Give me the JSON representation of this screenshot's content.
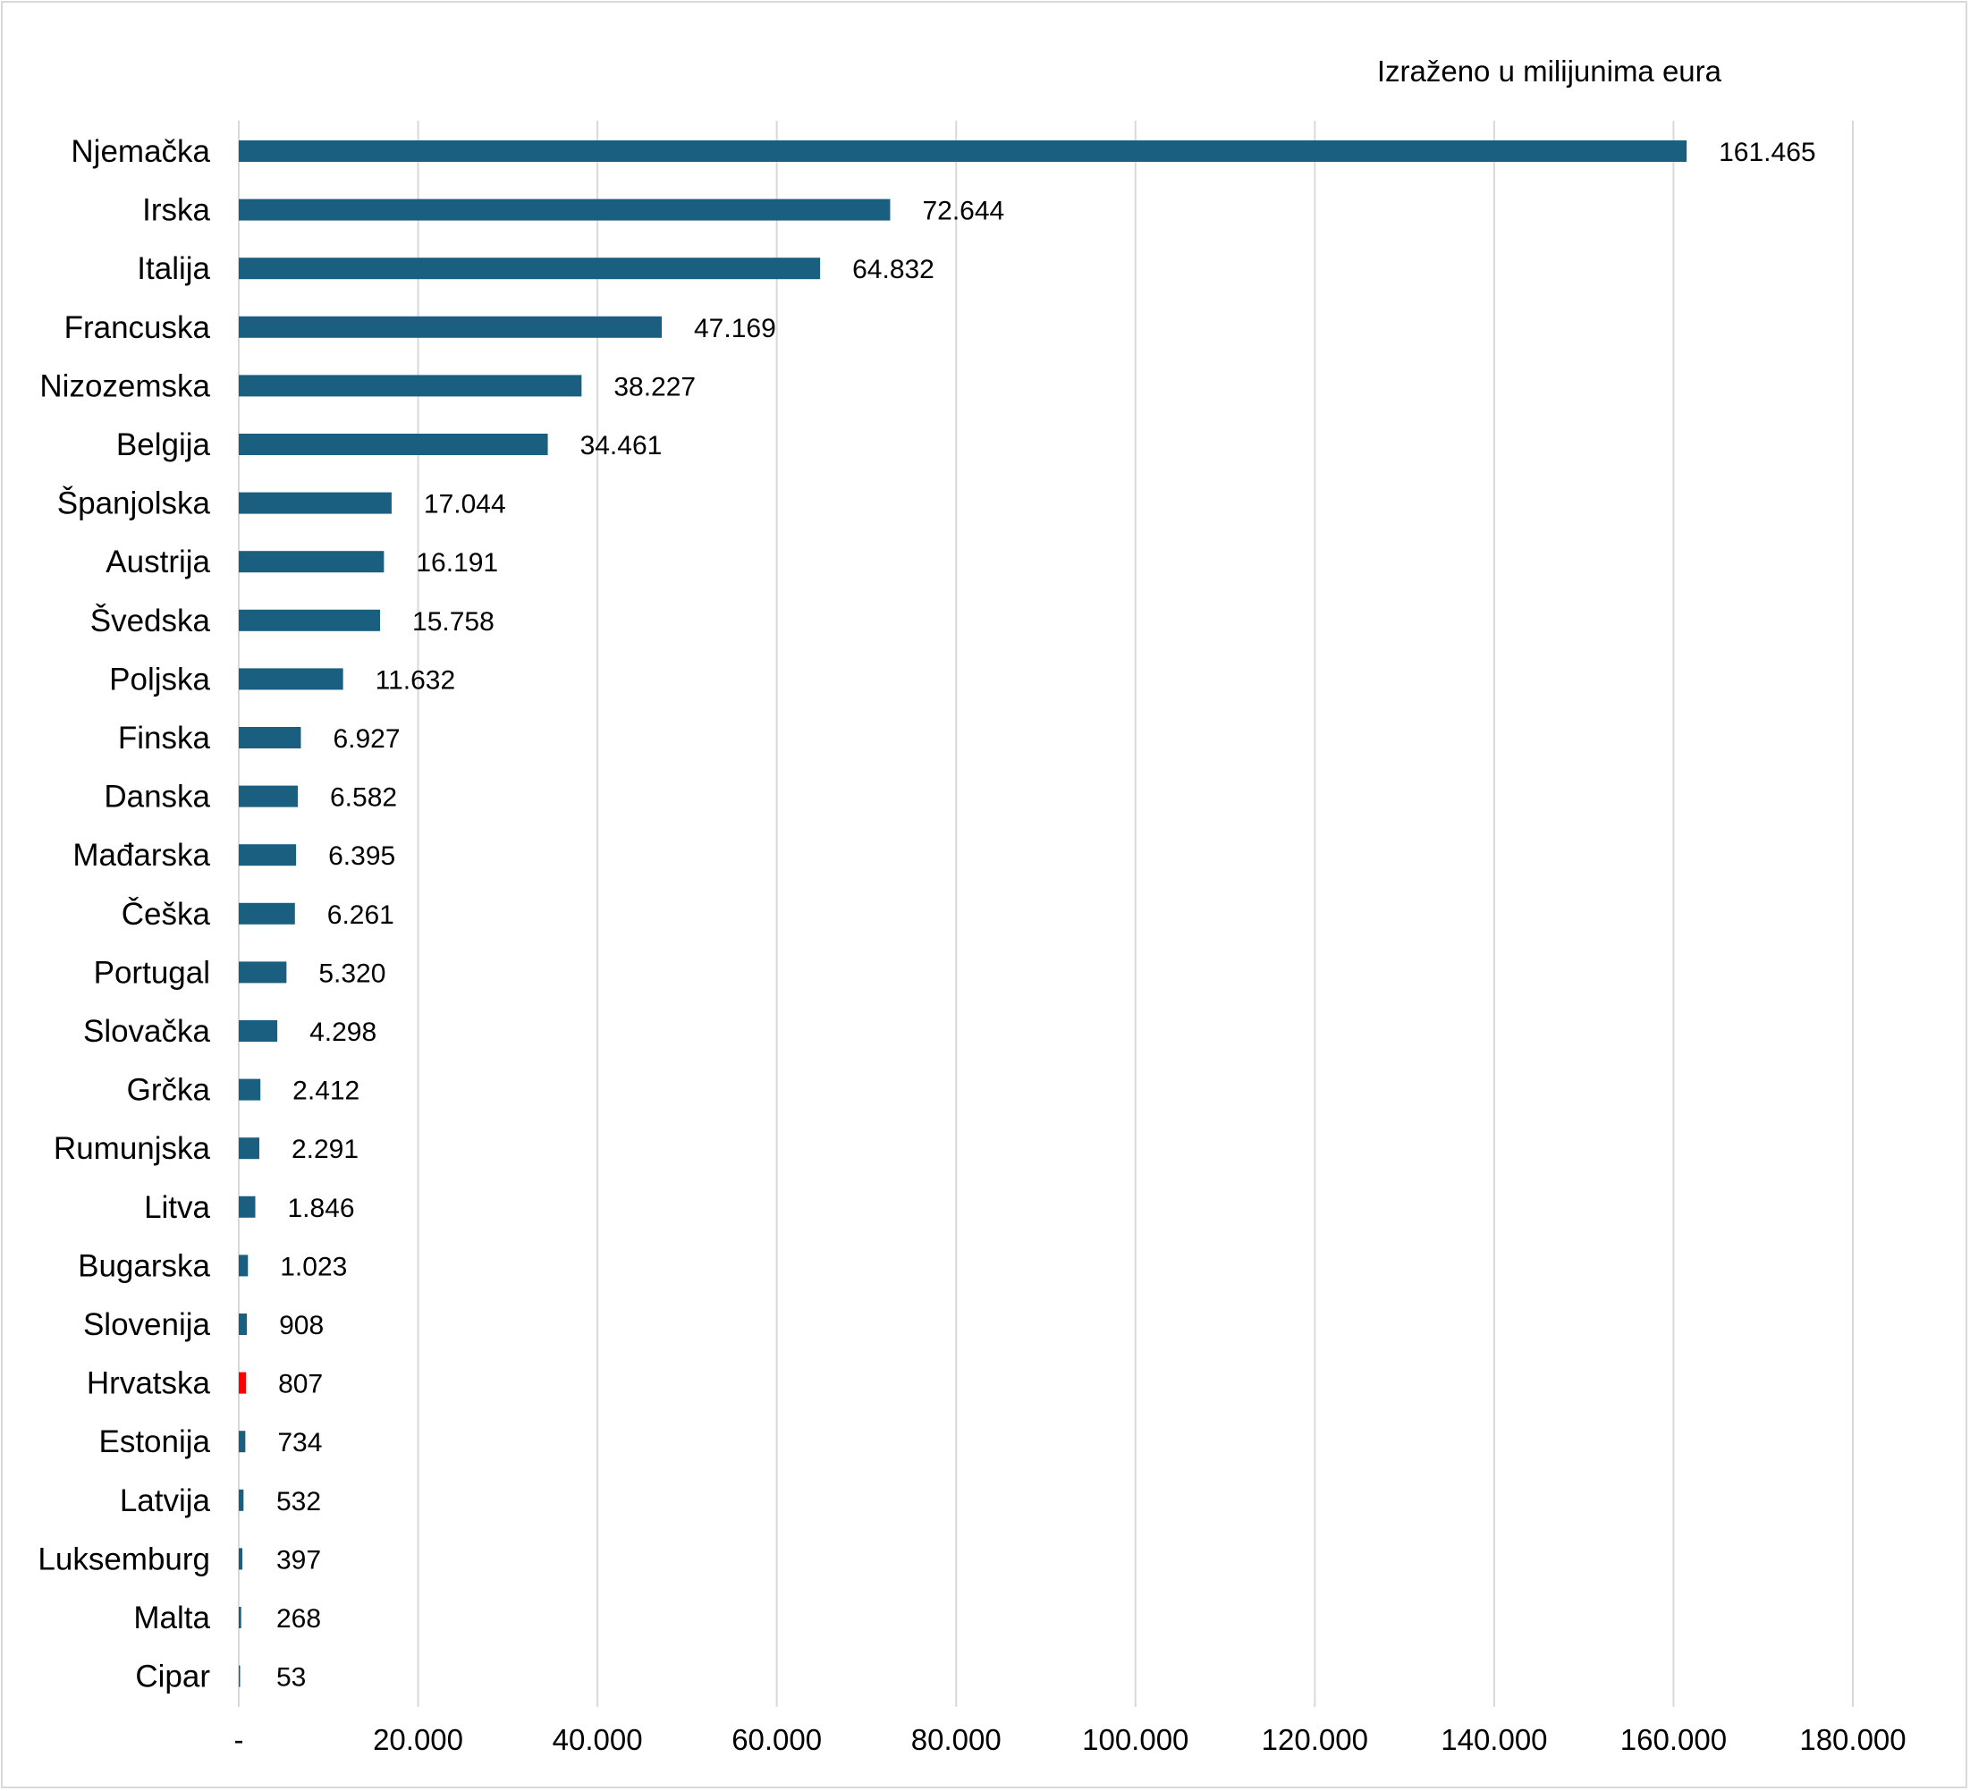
{
  "chart_data": {
    "type": "bar",
    "orientation": "horizontal",
    "note": "Izraženo u milijunima eura",
    "categories": [
      "Njemačka",
      "Irska",
      "Italija",
      "Francuska",
      "Nizozemska",
      "Belgija",
      "Španjolska",
      "Austrija",
      "Švedska",
      "Poljska",
      "Finska",
      "Danska",
      "Mađarska",
      "Češka",
      "Portugal",
      "Slovačka",
      "Grčka",
      "Rumunjska",
      "Litva",
      "Bugarska",
      "Slovenija",
      "Hrvatska",
      "Estonija",
      "Latvija",
      "Luksemburg",
      "Malta",
      "Cipar"
    ],
    "values": [
      161465,
      72644,
      64832,
      47169,
      38227,
      34461,
      17044,
      16191,
      15758,
      11632,
      6927,
      6582,
      6395,
      6261,
      5320,
      4298,
      2412,
      2291,
      1846,
      1023,
      908,
      807,
      734,
      532,
      397,
      268,
      53
    ],
    "value_labels": [
      "161.465",
      "72.644",
      "64.832",
      "47.169",
      "38.227",
      "34.461",
      "17.044",
      "16.191",
      "15.758",
      "11.632",
      "6.927",
      "6.582",
      "6.395",
      "6.261",
      "5.320",
      "4.298",
      "2.412",
      "2.291",
      "1.846",
      "1.023",
      "908",
      "807",
      "734",
      "532",
      "397",
      "268",
      "53"
    ],
    "highlight_category": "Hrvatska",
    "colors": {
      "bar": "#1a5e80",
      "highlight": "#ff0000",
      "grid": "#d9d9d9"
    },
    "xlim": [
      0,
      180000
    ],
    "xticks": [
      0,
      20000,
      40000,
      60000,
      80000,
      100000,
      120000,
      140000,
      160000,
      180000
    ],
    "xtick_labels": [
      "-",
      "20.000",
      "40.000",
      "60.000",
      "80.000",
      "100.000",
      "120.000",
      "140.000",
      "160.000",
      "180.000"
    ],
    "grid": true,
    "legend": "none"
  }
}
